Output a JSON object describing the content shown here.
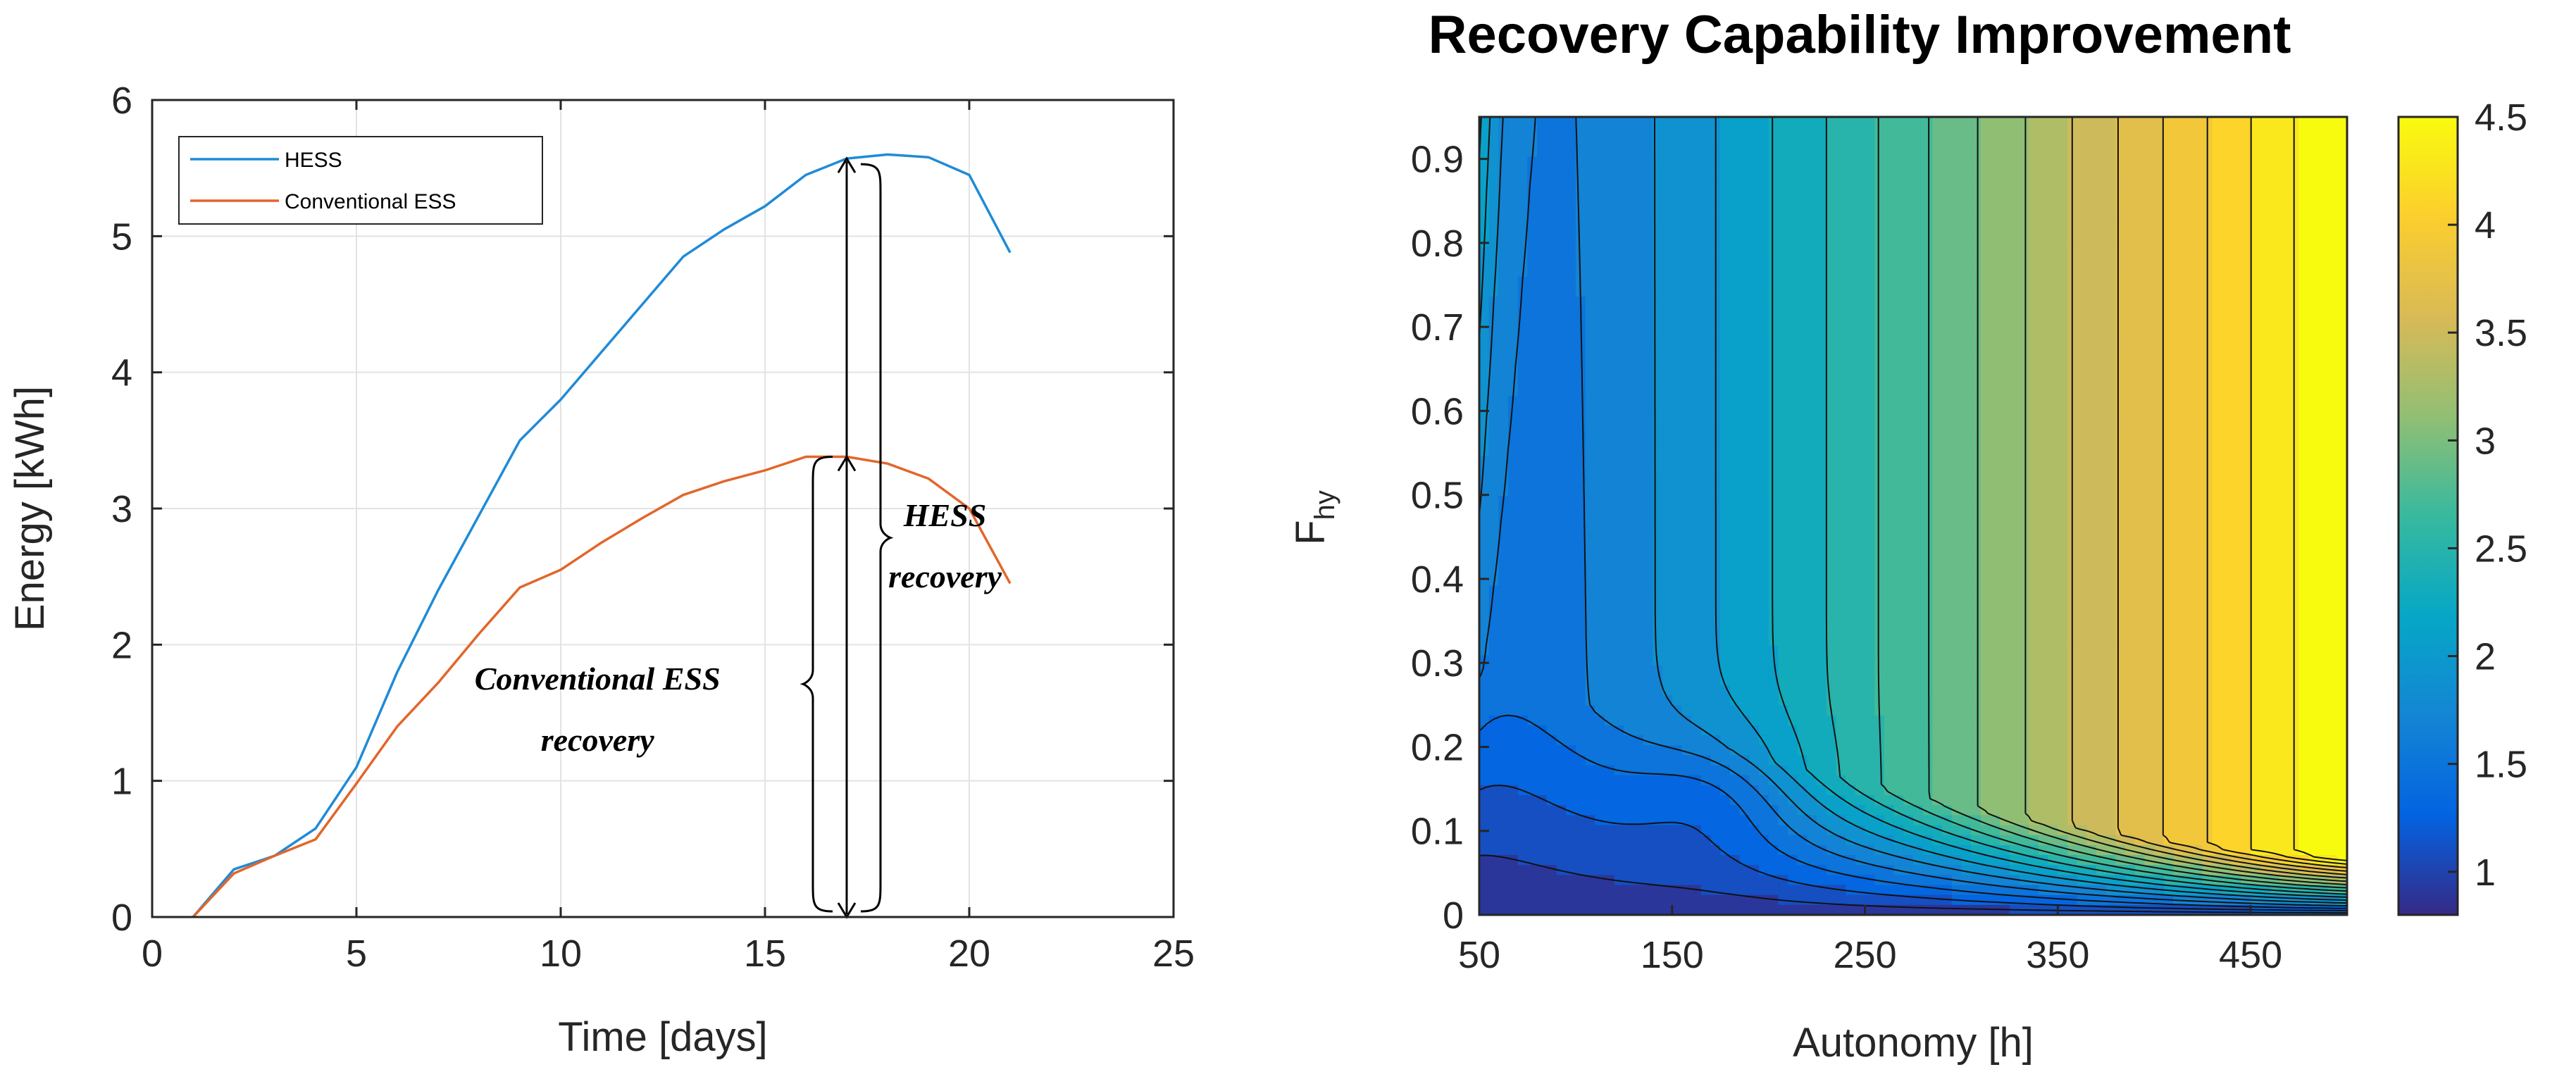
{
  "chart_data": [
    {
      "type": "line",
      "title": "",
      "xlabel": "Time [days]",
      "ylabel": "Energy [kWh]",
      "xlim": [
        0,
        25
      ],
      "ylim": [
        0,
        6
      ],
      "xticks": [
        0,
        5,
        10,
        15,
        20,
        25
      ],
      "yticks": [
        0,
        1,
        2,
        3,
        4,
        5,
        6
      ],
      "xtick_labels": [
        "0",
        "5",
        "10",
        "15",
        "20",
        "25"
      ],
      "ytick_labels": [
        "0",
        "1",
        "2",
        "3",
        "4",
        "5",
        "6"
      ],
      "grid": true,
      "legend_position": "top-left",
      "series": [
        {
          "name": "HESS",
          "color": "#1f8bd6",
          "x": [
            1,
            2,
            3,
            4,
            5,
            6,
            7,
            8,
            9,
            10,
            11,
            12,
            13,
            14,
            15,
            16,
            17,
            18,
            19,
            20,
            21
          ],
          "y": [
            0,
            0.35,
            0.45,
            0.65,
            1.1,
            1.8,
            2.4,
            2.95,
            3.5,
            3.8,
            4.15,
            4.5,
            4.85,
            5.05,
            5.22,
            5.45,
            5.57,
            5.6,
            5.58,
            5.45,
            4.88
          ]
        },
        {
          "name": "Conventional ESS",
          "color": "#e2662a",
          "x": [
            1,
            2,
            3,
            4,
            5,
            6,
            7,
            8,
            9,
            10,
            11,
            12,
            13,
            14,
            15,
            16,
            17,
            18,
            19,
            20,
            21
          ],
          "y": [
            0,
            0.32,
            0.45,
            0.57,
            0.98,
            1.4,
            1.72,
            2.08,
            2.42,
            2.55,
            2.75,
            2.93,
            3.1,
            3.2,
            3.28,
            3.38,
            3.38,
            3.33,
            3.22,
            3.0,
            2.45
          ]
        }
      ],
      "annotations": [
        {
          "lines": [
            "HESS",
            "recovery"
          ]
        },
        {
          "lines": [
            "Conventional ESS",
            "recovery"
          ]
        }
      ],
      "measure_arrow": {
        "x": 17,
        "y_from": 0,
        "y_to_hess": 5.57,
        "y_to_conv": 3.38
      }
    },
    {
      "type": "heatmap",
      "subtype": "filled-contour",
      "title": "Recovery Capability Improvement",
      "xlabel": "Autonomy [h]",
      "ylabel": "F",
      "ylabel_subscript": "hy",
      "xlim": [
        50,
        500
      ],
      "ylim": [
        0,
        0.95
      ],
      "xticks": [
        50,
        150,
        250,
        350,
        450
      ],
      "xtick_labels": [
        "50",
        "150",
        "250",
        "350",
        "450"
      ],
      "yticks": [
        0,
        0.1,
        0.2,
        0.3,
        0.4,
        0.5,
        0.6,
        0.7,
        0.8,
        0.9
      ],
      "ytick_labels": [
        "0",
        "0.1",
        "0.2",
        "0.3",
        "0.4",
        "0.5",
        "0.6",
        "0.7",
        "0.8",
        "0.9"
      ],
      "colorbar": {
        "limits": [
          0.8,
          4.5
        ],
        "ticks": [
          1,
          1.5,
          2,
          2.5,
          3,
          3.5,
          4,
          4.5
        ],
        "tick_labels": [
          "1",
          "1.5",
          "2",
          "2.5",
          "3",
          "3.5",
          "4",
          "4.5"
        ],
        "colormap": "parula",
        "colormap_stops": [
          "#352a87",
          "#0363e1",
          "#1485d4",
          "#06a7c6",
          "#38b99e",
          "#92bf73",
          "#d9ba56",
          "#fcce2e",
          "#f9fb0e"
        ]
      },
      "level_step": 0.2,
      "grid": false
    }
  ]
}
